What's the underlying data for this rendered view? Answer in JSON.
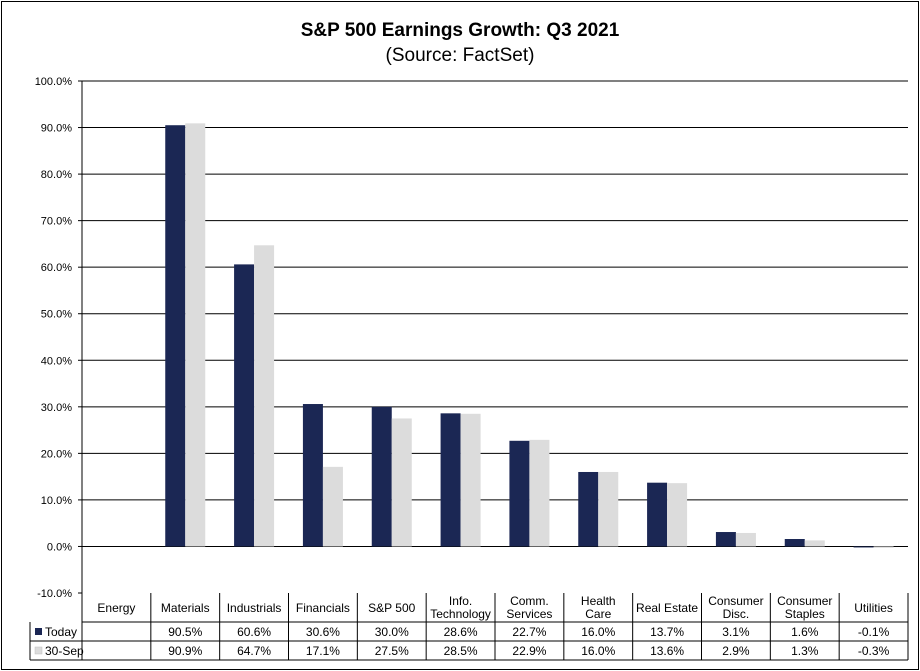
{
  "chart_data": {
    "type": "bar",
    "title": "S&P 500 Earnings Growth:  Q3 2021",
    "subtitle": "(Source: FactSet)",
    "categories": [
      "Energy",
      "Materials",
      "Industrials",
      "Financials",
      "S&P 500",
      "Info. Technology",
      "Comm. Services",
      "Health Care",
      "Real Estate",
      "Consumer Disc.",
      "Consumer Staples",
      "Utilities"
    ],
    "category_lines": [
      [
        "Energy"
      ],
      [
        "Materials"
      ],
      [
        "Industrials"
      ],
      [
        "Financials"
      ],
      [
        "S&P 500"
      ],
      [
        "Info.",
        "Technology"
      ],
      [
        "Comm.",
        "Services"
      ],
      [
        "Health",
        "Care"
      ],
      [
        "Real Estate"
      ],
      [
        "Consumer",
        "Disc."
      ],
      [
        "Consumer",
        "Staples"
      ],
      [
        "Utilities"
      ]
    ],
    "series": [
      {
        "name": "Today",
        "color": "#1b2754",
        "values": [
          null,
          90.5,
          60.6,
          30.6,
          30.0,
          28.6,
          22.7,
          16.0,
          13.7,
          3.1,
          1.6,
          -0.1
        ],
        "labels": [
          "",
          "90.5%",
          "60.6%",
          "30.6%",
          "30.0%",
          "28.6%",
          "22.7%",
          "16.0%",
          "13.7%",
          "3.1%",
          "1.6%",
          "-0.1%"
        ]
      },
      {
        "name": "30-Sep",
        "color": "#dcdcdc",
        "values": [
          null,
          90.9,
          64.7,
          17.1,
          27.5,
          28.5,
          22.9,
          16.0,
          13.6,
          2.9,
          1.3,
          -0.3
        ],
        "labels": [
          "",
          "90.9%",
          "64.7%",
          "17.1%",
          "27.5%",
          "28.5%",
          "22.9%",
          "16.0%",
          "13.6%",
          "2.9%",
          "1.3%",
          "-0.3%"
        ]
      }
    ],
    "ylim": [
      -10,
      100
    ],
    "y_ticks": [
      100,
      90,
      80,
      70,
      60,
      50,
      40,
      30,
      20,
      10,
      0,
      -10
    ],
    "y_tick_labels": [
      "100.0%",
      "90.0%",
      "80.0%",
      "70.0%",
      "60.0%",
      "50.0%",
      "40.0%",
      "30.0%",
      "20.0%",
      "10.0%",
      "0.0%",
      "-10.0%"
    ],
    "grid": true,
    "legend": "data-table"
  }
}
